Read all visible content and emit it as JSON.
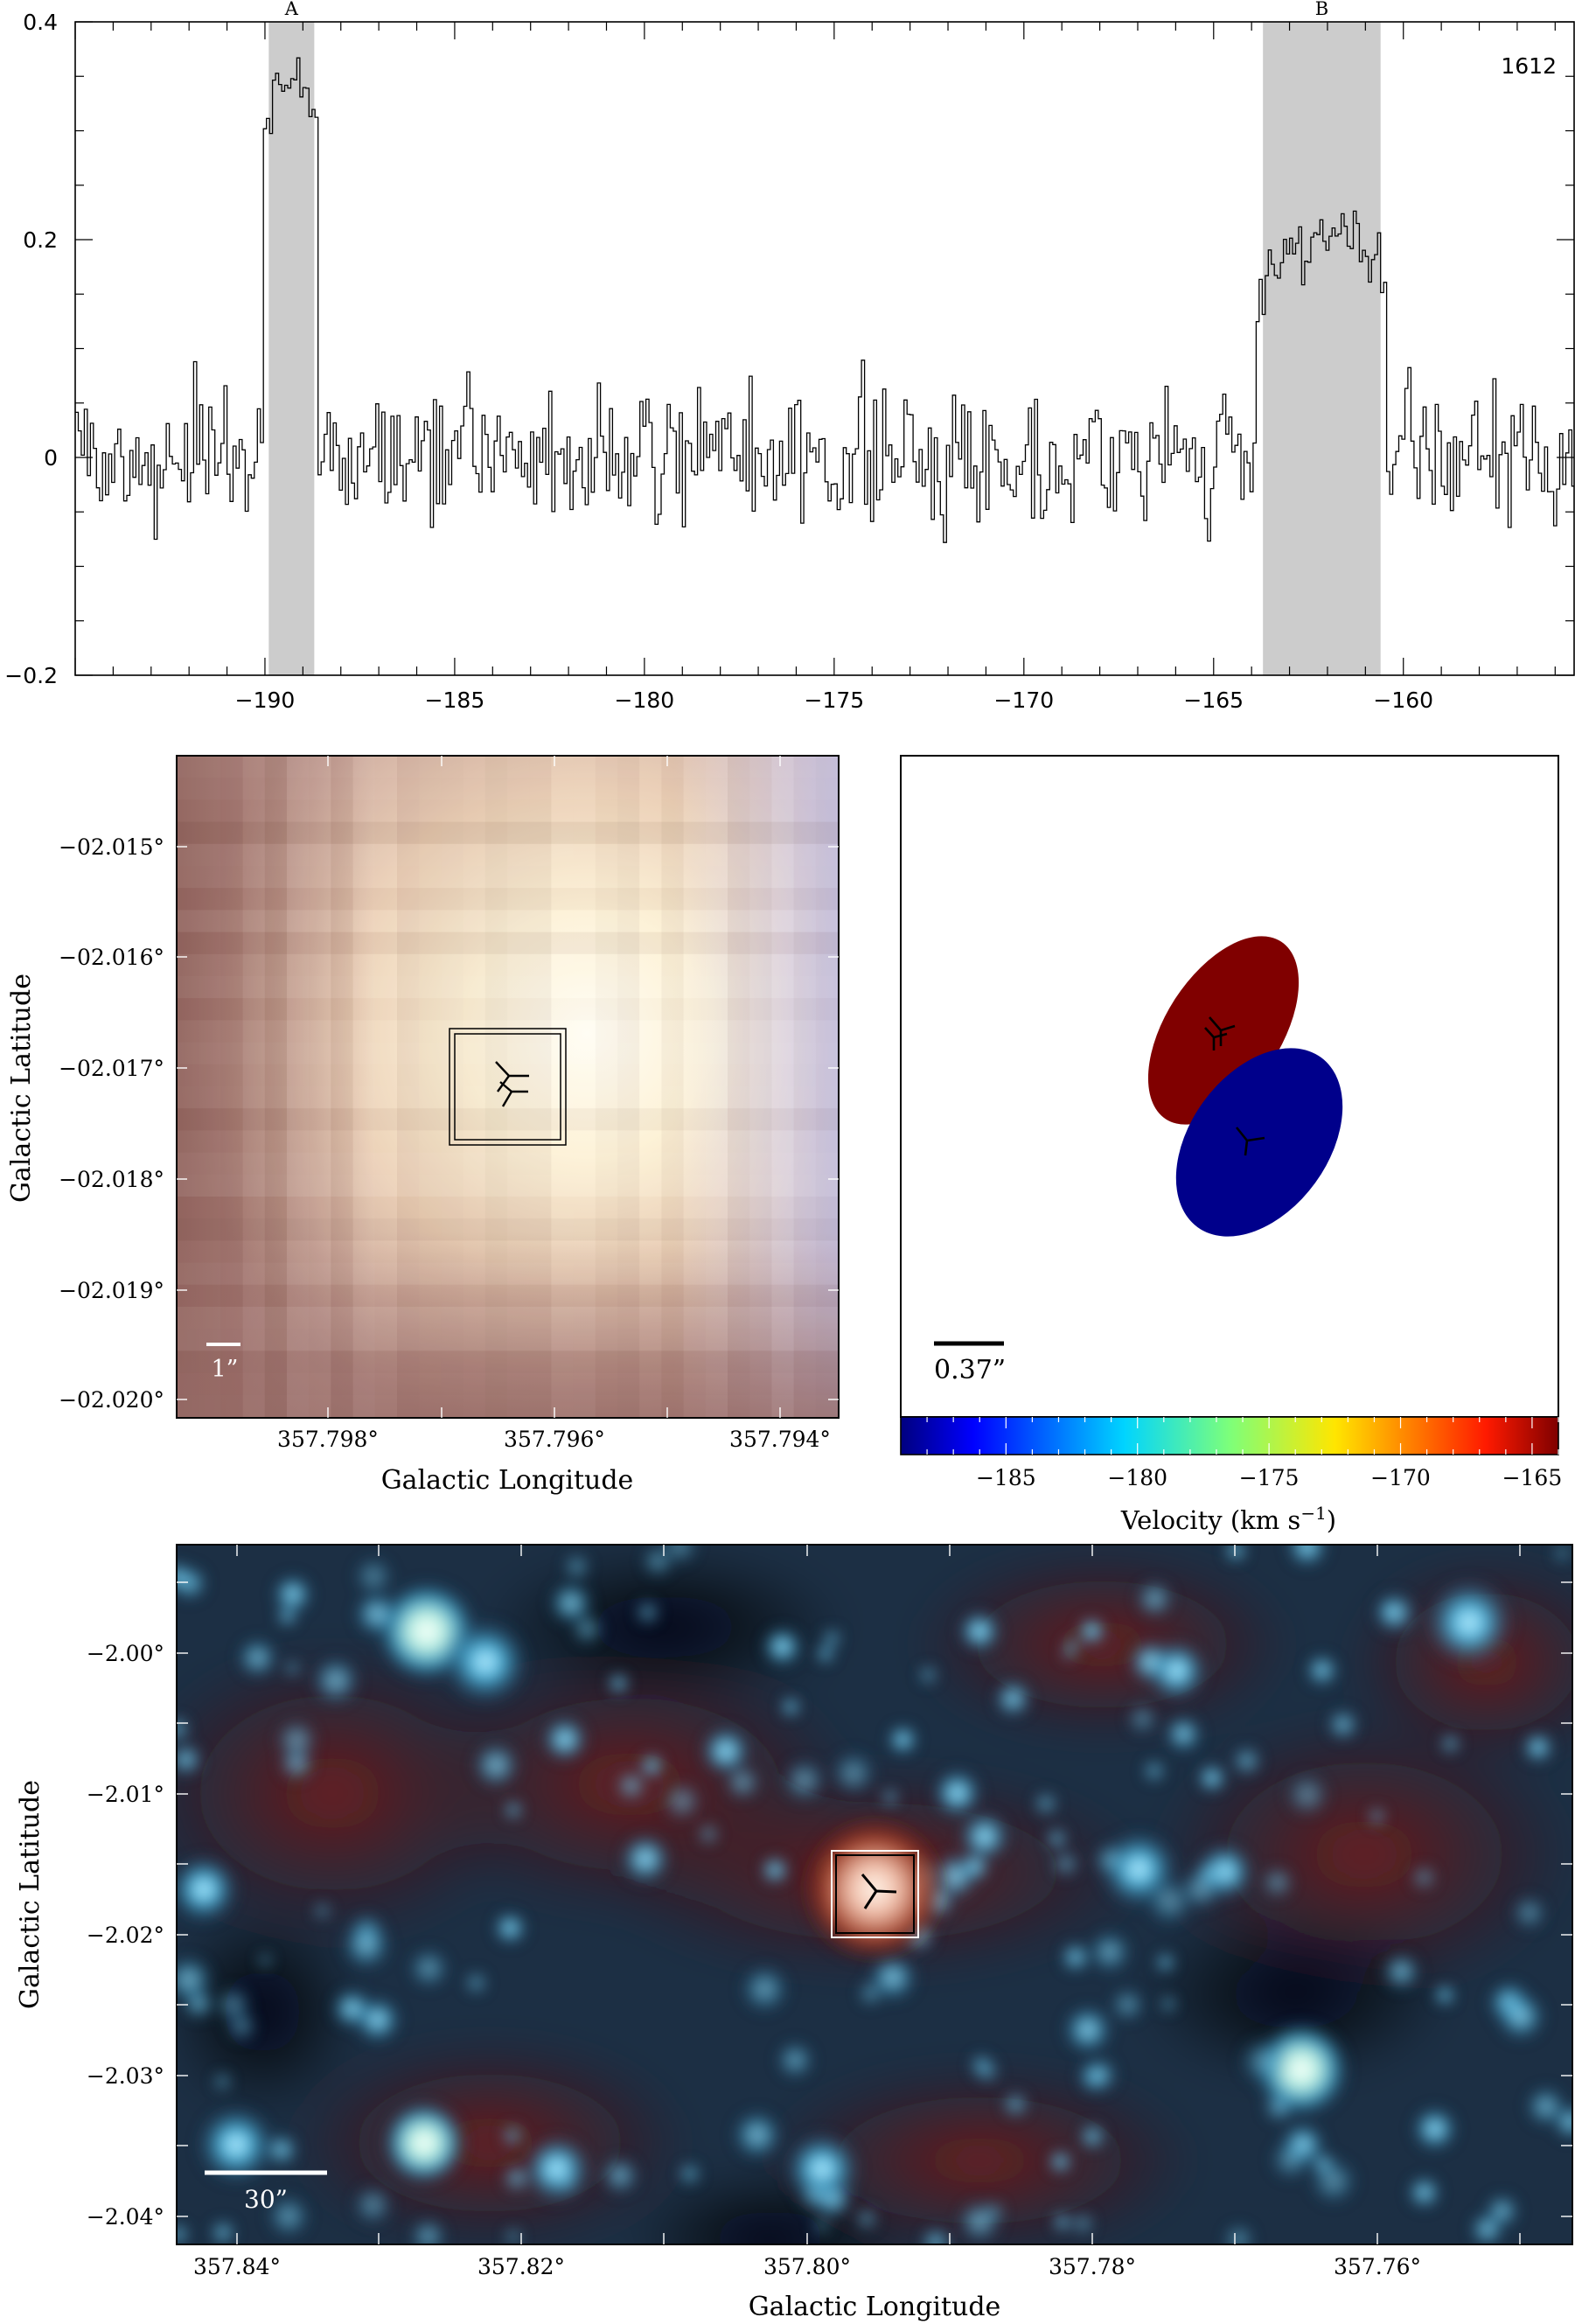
{
  "spectrum": {
    "label": "1612",
    "xlim": [
      -195,
      -155.5
    ],
    "ylim": [
      -0.2,
      0.4
    ],
    "xticks": [
      -190,
      -185,
      -180,
      -175,
      -170,
      -165,
      -160
    ],
    "xtick_labels": [
      "−190",
      "−185",
      "−180",
      "−175",
      "−170",
      "−165",
      "−160"
    ],
    "yticks": [
      -0.2,
      0,
      0.2,
      0.4
    ],
    "ytick_labels": [
      "−0.2",
      "0",
      "0.2",
      "0.4"
    ],
    "regions": [
      {
        "label": "A",
        "x0": -189.9,
        "x1": -188.7
      },
      {
        "label": "B",
        "x0": -163.7,
        "x1": -160.6
      }
    ],
    "region_color": "#cccccc"
  },
  "chart_data": [
    {
      "type": "line",
      "style": "step",
      "label": "1612",
      "xlim": [
        -195,
        -155.5
      ],
      "ylim": [
        -0.2,
        0.4
      ],
      "x_step": 0.08,
      "y_noise_std": 0.075,
      "features": [
        {
          "label": "A",
          "x_range": [
            -189.9,
            -188.7
          ],
          "peak_y": 0.37
        },
        {
          "label": "B",
          "x_range": [
            -163.7,
            -160.6
          ],
          "peak_y": 0.22
        }
      ]
    },
    {
      "type": "heatmap",
      "xlabel": "Galactic Longitude",
      "ylabel": "Galactic Latitude",
      "xticks": [
        "357.798°",
        "357.796°",
        "357.794°"
      ],
      "yticks": [
        "−02.015°",
        "−02.016°",
        "−02.017°",
        "−02.018°",
        "−02.019°",
        "−02.020°"
      ],
      "scalebar": "1”"
    },
    {
      "type": "scatter",
      "colorbar_label": "Velocity (km s−1)",
      "colorbar_range": [
        -189,
        -164
      ],
      "colorbar_ticks": [
        -185,
        -180,
        -175,
        -170,
        -165
      ],
      "components": [
        {
          "velocity": -164.5,
          "color": "#800000"
        },
        {
          "velocity": -189,
          "color": "#00008b"
        }
      ],
      "scalebar": "0.37”"
    },
    {
      "type": "heatmap",
      "xlabel": "Galactic Longitude",
      "ylabel": "Galactic Latitude",
      "xticks": [
        "357.84°",
        "357.82°",
        "357.80°",
        "357.78°",
        "357.76°"
      ],
      "yticks": [
        "−2.00°",
        "−2.01°",
        "−2.02°",
        "−2.03°",
        "−2.04°"
      ],
      "scalebar": "30”"
    }
  ],
  "zoom_panel": {
    "xlabel": "Galactic Longitude",
    "ylabel": "Galactic Latitude",
    "xtick_labels": [
      "357.798°",
      "357.796°",
      "357.794°"
    ],
    "ytick_labels": [
      "−02.015°",
      "−02.016°",
      "−02.017°",
      "−02.018°",
      "−02.019°",
      "−02.020°"
    ],
    "scalebar": "1”"
  },
  "velocity_panel": {
    "scalebar": "0.37”",
    "colorbar_label": "Velocity (km s",
    "colorbar_label_sup": "−1",
    "colorbar_label_end": ")",
    "colorbar_tick_labels": [
      "−185",
      "−180",
      "−175",
      "−170",
      "−165"
    ],
    "red_component_color": "#800000",
    "blue_component_color": "#00008b"
  },
  "wide_panel": {
    "xlabel": "Galactic Longitude",
    "ylabel": "Galactic Latitude",
    "xtick_labels": [
      "357.84°",
      "357.82°",
      "357.80°",
      "357.78°",
      "357.76°"
    ],
    "ytick_labels": [
      "−2.00°",
      "−2.01°",
      "−2.02°",
      "−2.03°",
      "−2.04°"
    ],
    "scalebar": "30”"
  }
}
